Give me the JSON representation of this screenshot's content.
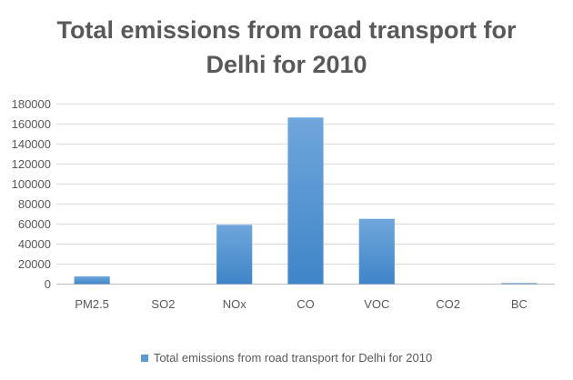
{
  "chart_data": {
    "type": "bar",
    "title_lines": [
      "Total emissions from road transport for",
      "Delhi for 2010"
    ],
    "categories": [
      "PM2.5",
      "SO2",
      "NOx",
      "CO",
      "VOC",
      "CO2",
      "BC"
    ],
    "series": [
      {
        "name": "Total emissions from road transport for Delhi for 2010",
        "values": [
          7700,
          0,
          59200,
          166400,
          65200,
          0,
          1000
        ],
        "color": "#5b9bd5"
      }
    ],
    "yticks": [
      "0",
      "20000",
      "40000",
      "60000",
      "80000",
      "100000",
      "120000",
      "140000",
      "160000",
      "180000"
    ],
    "ylim": [
      0,
      180000
    ],
    "grid": true,
    "legend_position": "bottom"
  }
}
